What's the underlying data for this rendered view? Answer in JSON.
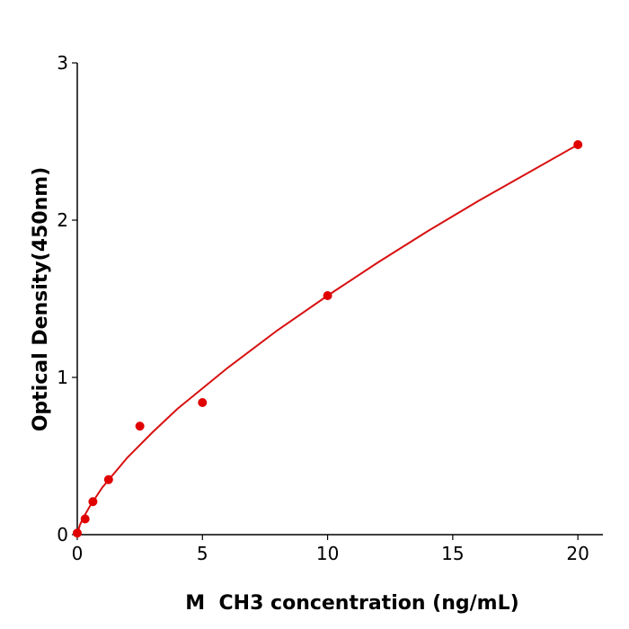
{
  "chart_data": {
    "type": "scatter",
    "x_label": "M  CH3 concentration (ng/mL)",
    "y_label": "Optical Density(450nm)",
    "x": [
      0,
      0.3125,
      0.625,
      1.25,
      2.5,
      5,
      10,
      20
    ],
    "values": [
      0.01,
      0.1,
      0.21,
      0.35,
      0.69,
      0.84,
      1.52,
      2.48
    ],
    "color": "#e00000",
    "fit_x": [
      0,
      0.1,
      0.25,
      0.5,
      1,
      2,
      3,
      4,
      5,
      6,
      8,
      10,
      12,
      14,
      16,
      18,
      20
    ],
    "fit_values": [
      0,
      0.06,
      0.11,
      0.18,
      0.3,
      0.49,
      0.65,
      0.8,
      0.93,
      1.06,
      1.3,
      1.52,
      1.73,
      1.93,
      2.12,
      2.3,
      2.48
    ],
    "fit_color": "#d81010",
    "xlim": [
      0,
      21
    ],
    "xticks": [
      0,
      5,
      10,
      15,
      20
    ],
    "ylim": [
      0,
      3
    ],
    "yticks": [
      0,
      1,
      2,
      3
    ],
    "grid": false
  }
}
